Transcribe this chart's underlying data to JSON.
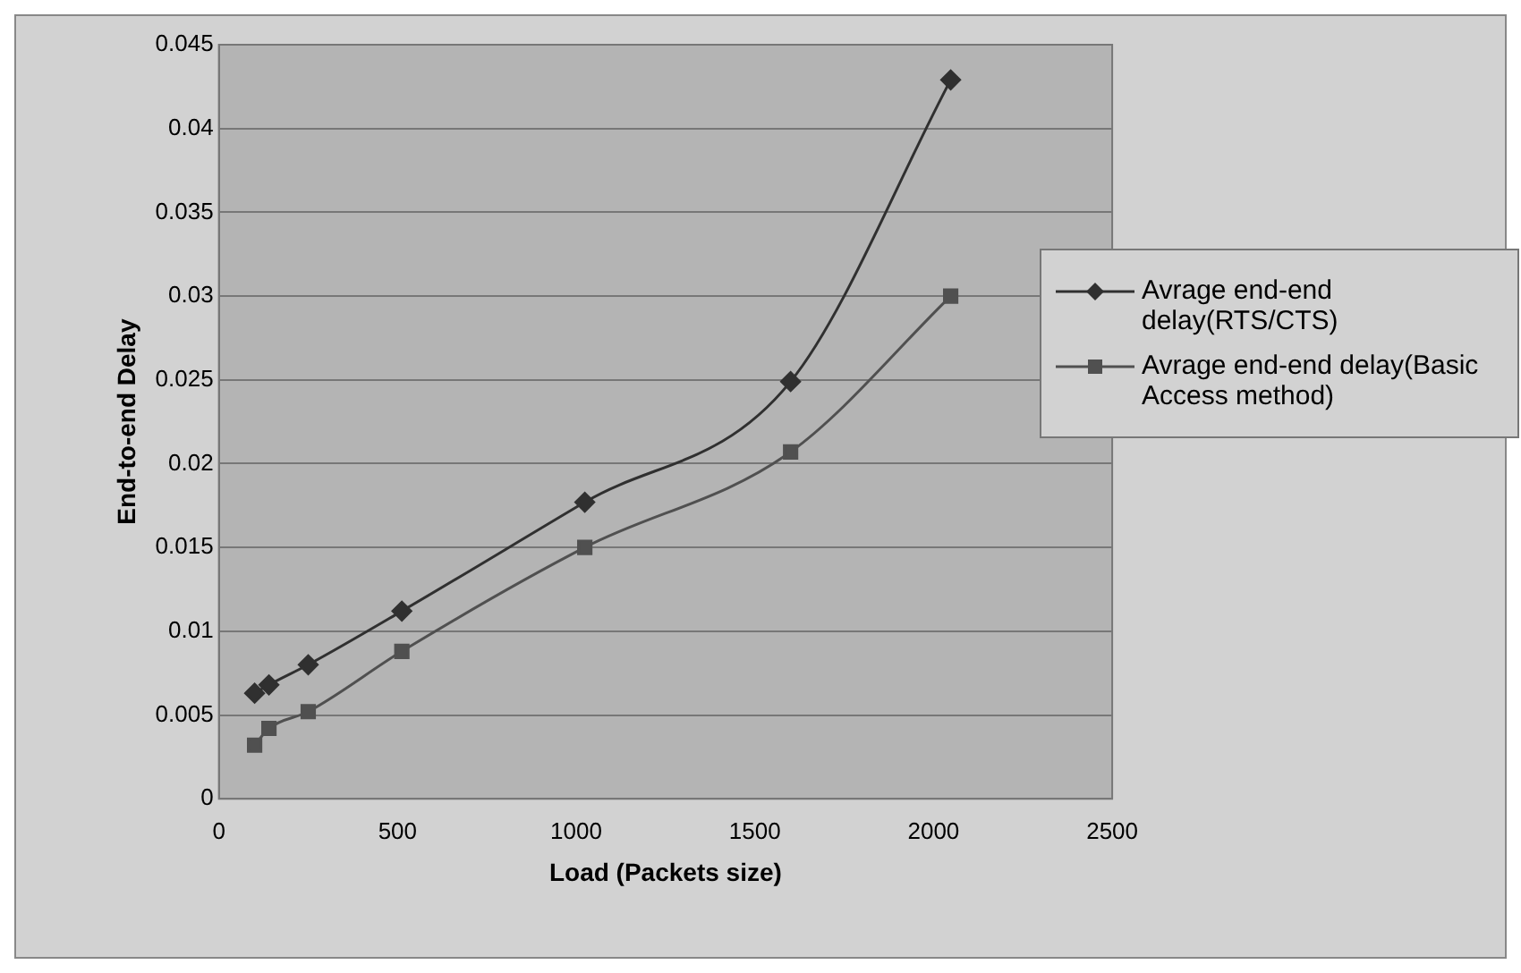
{
  "chart_data": {
    "type": "line",
    "xlabel": "Load (Packets size)",
    "ylabel": "End-to-end Delay",
    "x": [
      100,
      140,
      250,
      512,
      1024,
      1600,
      2048
    ],
    "series": [
      {
        "name": "Avrage end-end delay(RTS/CTS)",
        "color": "#303030",
        "marker": "diamond",
        "values": [
          0.0063,
          0.0068,
          0.008,
          0.0112,
          0.0177,
          0.0249,
          0.0429
        ]
      },
      {
        "name": "Avrage end-end delay(Basic Access method)",
        "color": "#505050",
        "marker": "square",
        "values": [
          0.0032,
          0.0042,
          0.0052,
          0.0088,
          0.015,
          0.0207,
          0.03
        ]
      }
    ],
    "xlim": [
      0,
      2500
    ],
    "xticks": [
      0,
      500,
      1000,
      1500,
      2000,
      2500
    ],
    "ylim": [
      0,
      0.045
    ],
    "yticks": [
      0,
      0.005,
      0.01,
      0.015,
      0.02,
      0.025,
      0.03,
      0.035,
      0.04,
      0.045
    ],
    "grid": "y",
    "legend": "right",
    "line_style": "solid"
  }
}
